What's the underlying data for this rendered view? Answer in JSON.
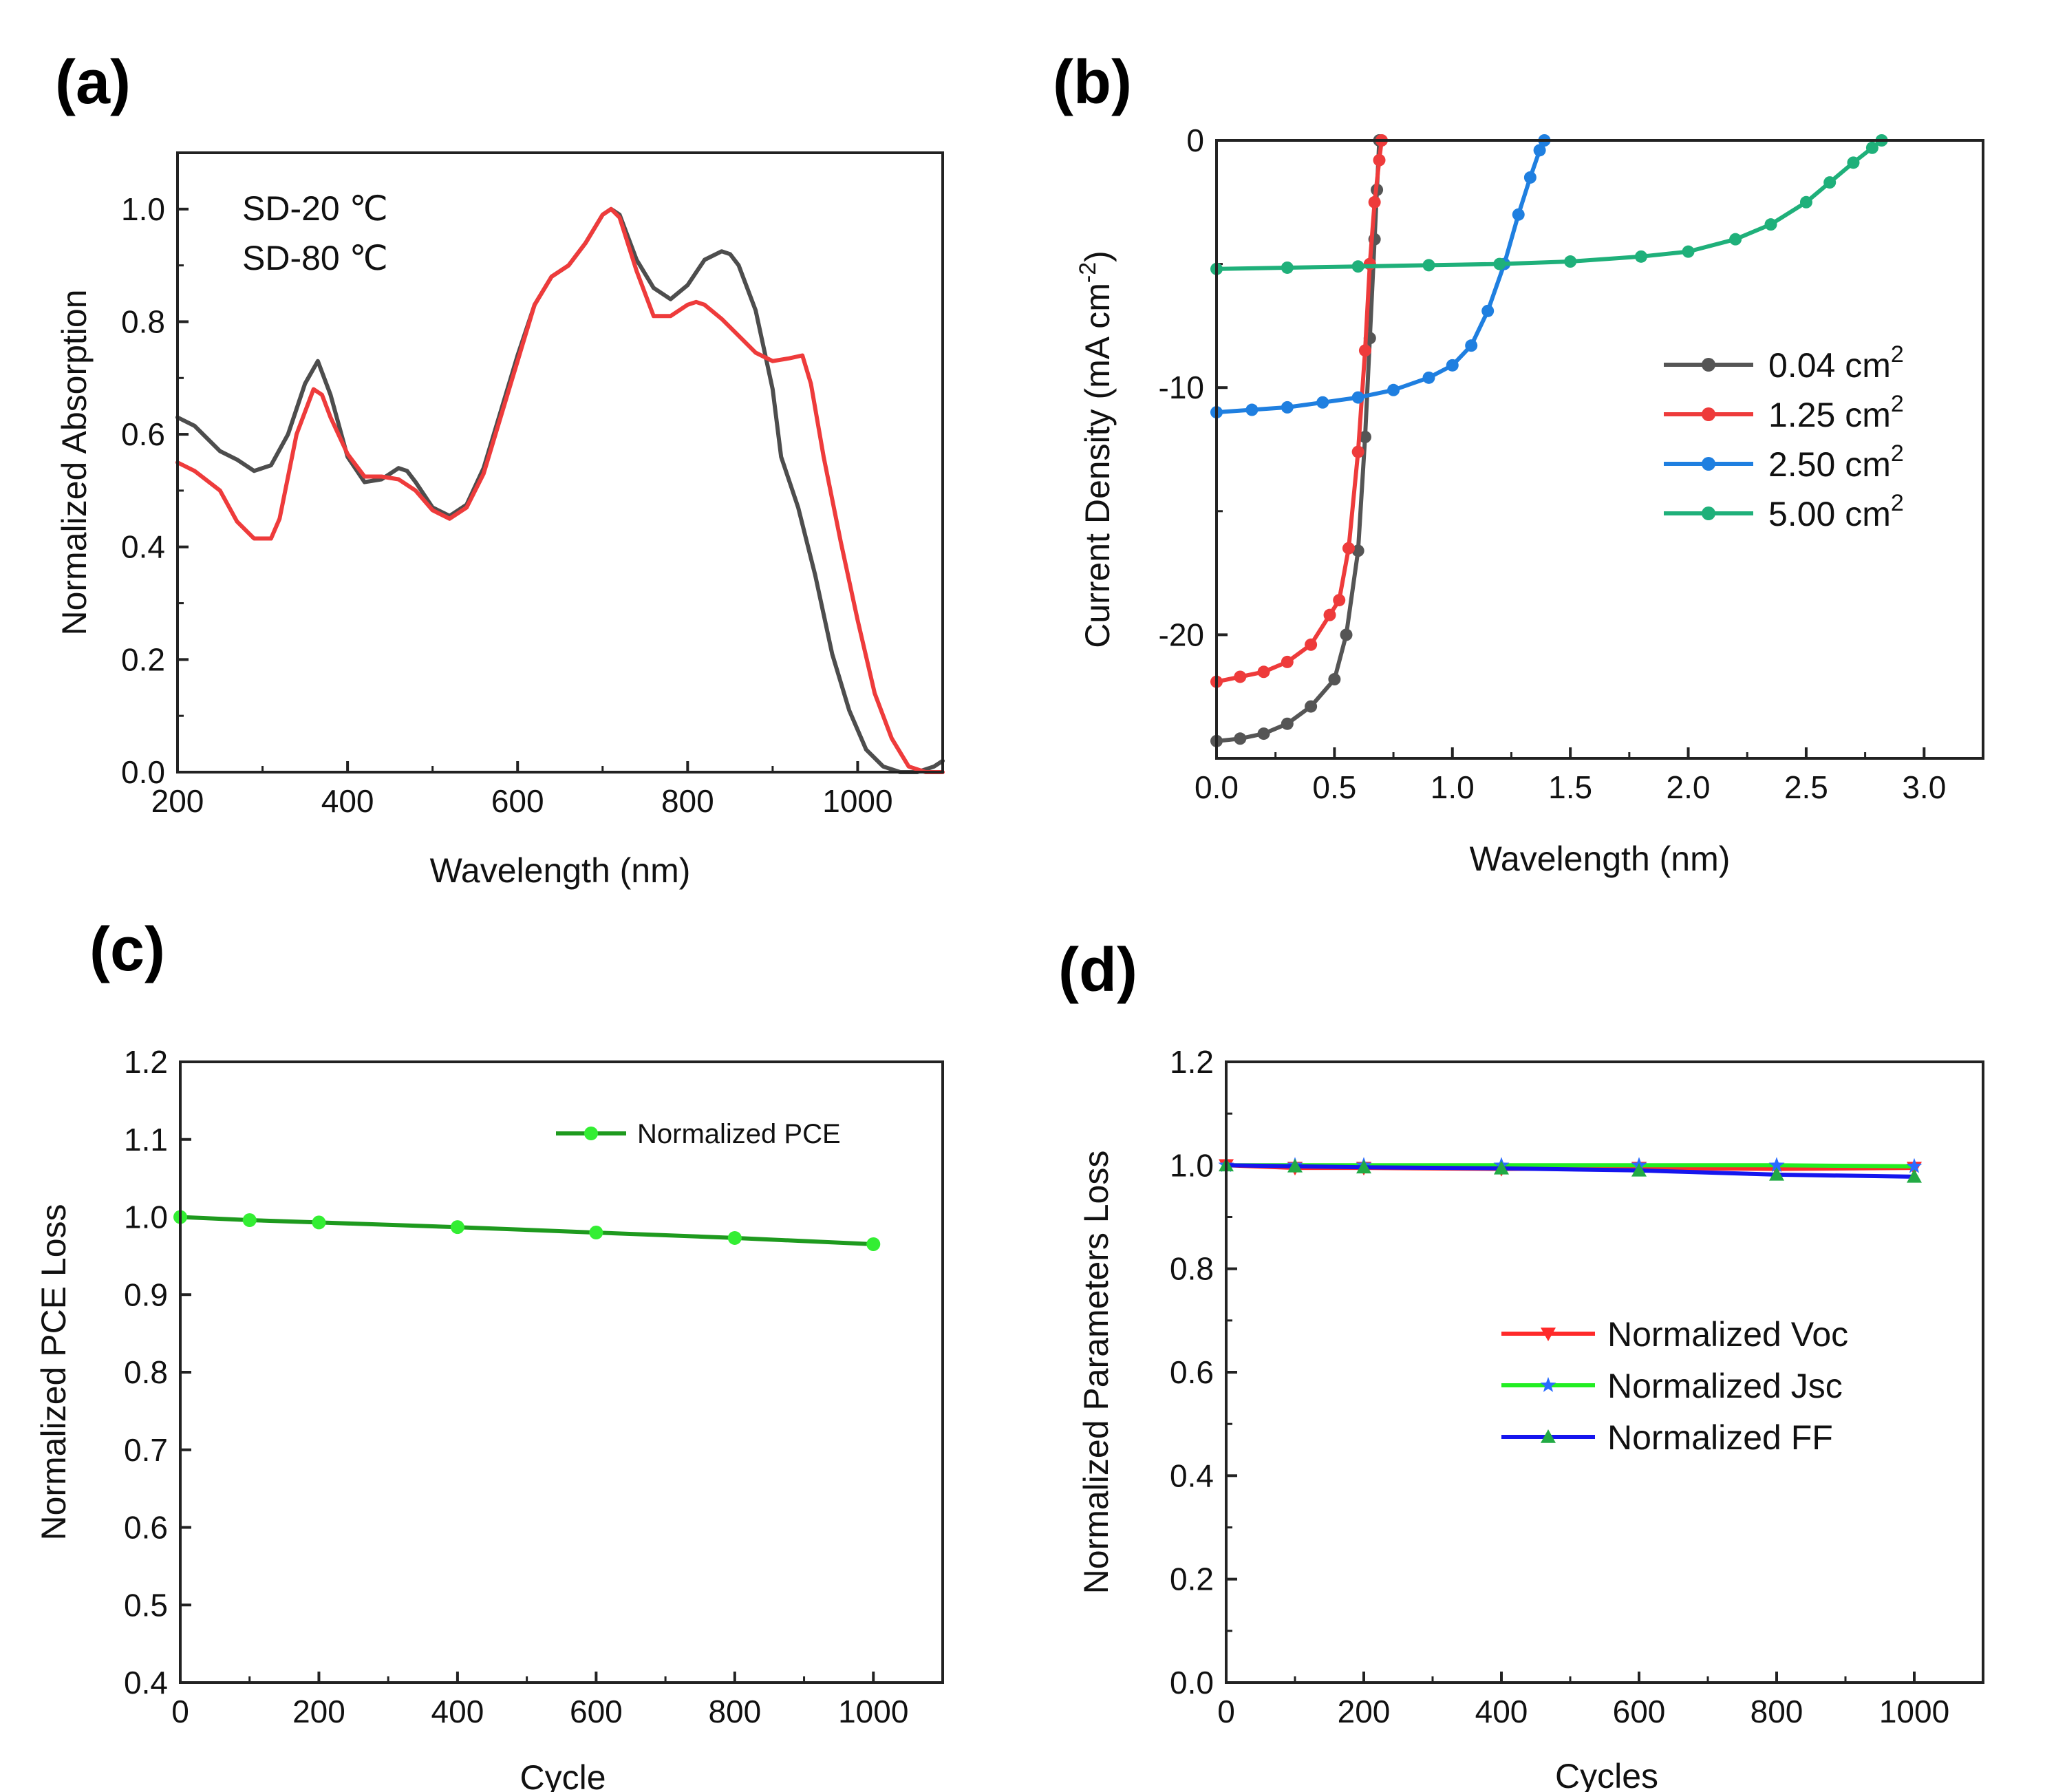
{
  "chart_data": [
    {
      "panel": "(a)",
      "type": "line",
      "title": "",
      "xlabel": "Wavelength (nm)",
      "ylabel": "Normalized Absorption",
      "xlim": [
        200,
        1100
      ],
      "ylim": [
        0,
        1.1
      ],
      "xticks": [
        "200",
        "400",
        "600",
        "800",
        "1000"
      ],
      "yticks": [
        "0.0",
        "0.2",
        "0.4",
        "0.6",
        "0.8",
        "1.0"
      ],
      "grid": false,
      "legend": "top-left",
      "series": [
        {
          "name": "SD-20 ℃",
          "color": "#4d4d4d",
          "x": [
            200,
            220,
            250,
            270,
            290,
            310,
            330,
            350,
            365,
            380,
            400,
            420,
            440,
            460,
            470,
            480,
            500,
            520,
            540,
            560,
            580,
            600,
            620,
            640,
            660,
            680,
            700,
            710,
            720,
            740,
            760,
            780,
            800,
            820,
            840,
            850,
            860,
            880,
            900,
            910,
            930,
            950,
            970,
            990,
            1010,
            1030,
            1050,
            1070,
            1090,
            1100
          ],
          "y": [
            0.63,
            0.615,
            0.57,
            0.555,
            0.535,
            0.545,
            0.6,
            0.69,
            0.73,
            0.67,
            0.56,
            0.515,
            0.52,
            0.54,
            0.535,
            0.515,
            0.47,
            0.455,
            0.475,
            0.54,
            0.64,
            0.74,
            0.83,
            0.88,
            0.9,
            0.94,
            0.99,
            1.0,
            0.99,
            0.91,
            0.86,
            0.84,
            0.865,
            0.91,
            0.925,
            0.92,
            0.9,
            0.82,
            0.68,
            0.56,
            0.47,
            0.35,
            0.21,
            0.11,
            0.04,
            0.01,
            0.0,
            0.0,
            0.01,
            0.02
          ]
        },
        {
          "name": "SD-80 ℃",
          "color": "#ee3b3b",
          "x": [
            200,
            220,
            250,
            270,
            290,
            310,
            320,
            340,
            360,
            370,
            380,
            400,
            420,
            440,
            460,
            480,
            500,
            520,
            540,
            560,
            580,
            600,
            620,
            640,
            660,
            680,
            700,
            710,
            720,
            740,
            760,
            780,
            800,
            810,
            820,
            840,
            860,
            880,
            900,
            920,
            935,
            945,
            960,
            980,
            1000,
            1020,
            1040,
            1060,
            1080,
            1100
          ],
          "y": [
            0.55,
            0.535,
            0.5,
            0.445,
            0.415,
            0.415,
            0.45,
            0.6,
            0.68,
            0.67,
            0.63,
            0.565,
            0.525,
            0.525,
            0.52,
            0.5,
            0.465,
            0.45,
            0.47,
            0.53,
            0.63,
            0.73,
            0.83,
            0.88,
            0.9,
            0.94,
            0.99,
            1.0,
            0.985,
            0.89,
            0.81,
            0.81,
            0.83,
            0.835,
            0.83,
            0.805,
            0.775,
            0.745,
            0.73,
            0.735,
            0.74,
            0.69,
            0.56,
            0.41,
            0.27,
            0.14,
            0.06,
            0.01,
            0.0,
            0.0
          ]
        }
      ]
    },
    {
      "panel": "(b)",
      "type": "line",
      "title": "",
      "xlabel": "Wavelength (nm)",
      "ylabel": "Current Density (mA cm-2)",
      "ylabel_parts": [
        "Current Density (mA cm",
        "-2",
        ")"
      ],
      "xlim": [
        0,
        3.25
      ],
      "ylim": [
        -25,
        0
      ],
      "xticks": [
        "0.0",
        "0.5",
        "1.0",
        "1.5",
        "2.0",
        "2.5",
        "3.0"
      ],
      "yticks": [
        "0",
        "-10",
        "-20"
      ],
      "grid": false,
      "legend": "right",
      "legend_unit": "cm",
      "legend_unit_sup": "2",
      "series": [
        {
          "name": "0.04 cm2",
          "label_value": "0.04",
          "color": "#555555",
          "x": [
            0.0,
            0.1,
            0.2,
            0.3,
            0.4,
            0.5,
            0.55,
            0.6,
            0.63,
            0.65,
            0.67,
            0.68,
            0.69
          ],
          "y": [
            -24.3,
            -24.2,
            -24.0,
            -23.6,
            -22.9,
            -21.8,
            -20.0,
            -16.6,
            -12.0,
            -8.0,
            -4.0,
            -2.0,
            0.0
          ]
        },
        {
          "name": "1.25 cm2",
          "label_value": "1.25",
          "color": "#ee3b3b",
          "x": [
            0.0,
            0.1,
            0.2,
            0.3,
            0.4,
            0.48,
            0.52,
            0.56,
            0.6,
            0.63,
            0.65,
            0.67,
            0.69,
            0.7
          ],
          "y": [
            -21.9,
            -21.7,
            -21.5,
            -21.1,
            -20.4,
            -19.2,
            -18.6,
            -16.5,
            -12.6,
            -8.5,
            -5.0,
            -2.5,
            -0.8,
            0.0
          ]
        },
        {
          "name": "2.50 cm2",
          "label_value": "2.50",
          "color": "#1f7fe0",
          "x": [
            0.0,
            0.15,
            0.3,
            0.45,
            0.6,
            0.75,
            0.9,
            1.0,
            1.08,
            1.15,
            1.22,
            1.28,
            1.33,
            1.37,
            1.39
          ],
          "y": [
            -11.0,
            -10.9,
            -10.8,
            -10.6,
            -10.4,
            -10.1,
            -9.6,
            -9.1,
            -8.3,
            -6.9,
            -5.0,
            -3.0,
            -1.5,
            -0.4,
            0.0
          ]
        },
        {
          "name": "5.00 cm2",
          "label_value": "5.00",
          "color": "#1fb07a",
          "x": [
            0.0,
            0.3,
            0.6,
            0.9,
            1.2,
            1.5,
            1.8,
            2.0,
            2.2,
            2.35,
            2.5,
            2.6,
            2.7,
            2.78,
            2.82
          ],
          "y": [
            -5.2,
            -5.15,
            -5.1,
            -5.05,
            -5.0,
            -4.9,
            -4.7,
            -4.5,
            -4.0,
            -3.4,
            -2.5,
            -1.7,
            -0.9,
            -0.3,
            0.0
          ]
        }
      ]
    },
    {
      "panel": "(c)",
      "type": "line",
      "title": "",
      "xlabel": "Cycle",
      "ylabel": "Normalized PCE Loss",
      "xlim": [
        0,
        1100
      ],
      "ylim": [
        0.4,
        1.2
      ],
      "xticks": [
        "0",
        "200",
        "400",
        "600",
        "800",
        "1000"
      ],
      "yticks": [
        "0.4",
        "0.5",
        "0.6",
        "0.7",
        "0.8",
        "0.9",
        "1.0",
        "1.1",
        "1.2"
      ],
      "grid": false,
      "legend": "top-right",
      "series": [
        {
          "name": "Normalized PCE",
          "color": "#1e9a1e",
          "marker_color": "#33ee33",
          "x": [
            0,
            100,
            200,
            400,
            600,
            800,
            1000
          ],
          "y": [
            1.0,
            0.996,
            0.993,
            0.987,
            0.98,
            0.973,
            0.965
          ]
        }
      ]
    },
    {
      "panel": "(d)",
      "type": "line",
      "title": "",
      "xlabel": "Cycles",
      "ylabel": "Normalized Parameters Loss",
      "xlim": [
        0,
        1100
      ],
      "ylim": [
        0,
        1.2
      ],
      "xticks": [
        "0",
        "200",
        "400",
        "600",
        "800",
        "1000"
      ],
      "yticks": [
        "0.0",
        "0.2",
        "0.4",
        "0.6",
        "0.8",
        "1.0",
        "1.2"
      ],
      "grid": false,
      "legend": "center-right",
      "series": [
        {
          "name": "Normalized Voc",
          "color": "#ff2a2a",
          "marker": "triangle-down",
          "x": [
            0,
            100,
            200,
            400,
            600,
            800,
            1000
          ],
          "y": [
            1.0,
            0.995,
            0.995,
            0.993,
            0.995,
            0.993,
            0.995
          ]
        },
        {
          "name": "Normalized Jsc",
          "color": "#22ee22",
          "marker": "star",
          "marker_color": "#2a6cff",
          "x": [
            0,
            100,
            200,
            400,
            600,
            800,
            1000
          ],
          "y": [
            1.0,
            1.0,
            1.0,
            1.0,
            1.0,
            1.0,
            0.998
          ]
        },
        {
          "name": "Normalized FF",
          "color": "#1515ee",
          "marker": "triangle-up",
          "marker_color": "#22aa44",
          "x": [
            0,
            100,
            200,
            400,
            600,
            800,
            1000
          ],
          "y": [
            1.0,
            0.998,
            0.996,
            0.994,
            0.99,
            0.982,
            0.978
          ]
        }
      ]
    }
  ]
}
